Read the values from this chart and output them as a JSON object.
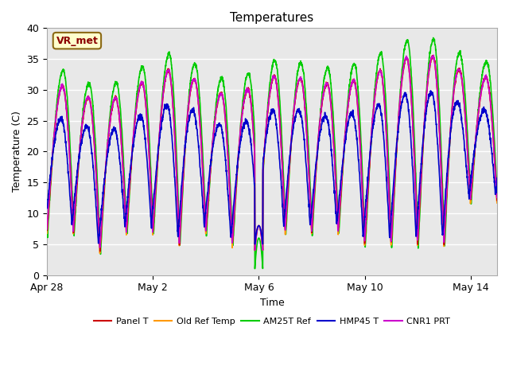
{
  "title": "Temperatures",
  "xlabel": "Time",
  "ylabel": "Temperature (C)",
  "ylim": [
    0,
    40
  ],
  "annotation": "VR_met",
  "plot_bg": "#e8e8e8",
  "fig_bg": "#ffffff",
  "series": {
    "Panel T": {
      "color": "#cc0000",
      "lw": 1.2,
      "zorder": 5
    },
    "Old Ref Temp": {
      "color": "#ff9900",
      "lw": 1.2,
      "zorder": 4
    },
    "AM25T Ref": {
      "color": "#00cc00",
      "lw": 1.2,
      "zorder": 3
    },
    "HMP45 T": {
      "color": "#0000cc",
      "lw": 1.2,
      "zorder": 7
    },
    "CNR1 PRT": {
      "color": "#cc00cc",
      "lw": 1.2,
      "zorder": 6
    }
  },
  "xtick_labels": [
    "Apr 28",
    "May 2",
    "May 6",
    "May 10",
    "May 14"
  ],
  "xtick_positions": [
    0,
    4,
    8,
    12,
    16
  ],
  "ytick_positions": [
    0,
    5,
    10,
    15,
    20,
    25,
    30,
    35,
    40
  ],
  "n_days": 17,
  "pts_per_day": 144,
  "grid_color": "#ffffff",
  "grid_lw": 1.0,
  "title_fontsize": 11,
  "label_fontsize": 9,
  "tick_fontsize": 9,
  "legend_fontsize": 8
}
